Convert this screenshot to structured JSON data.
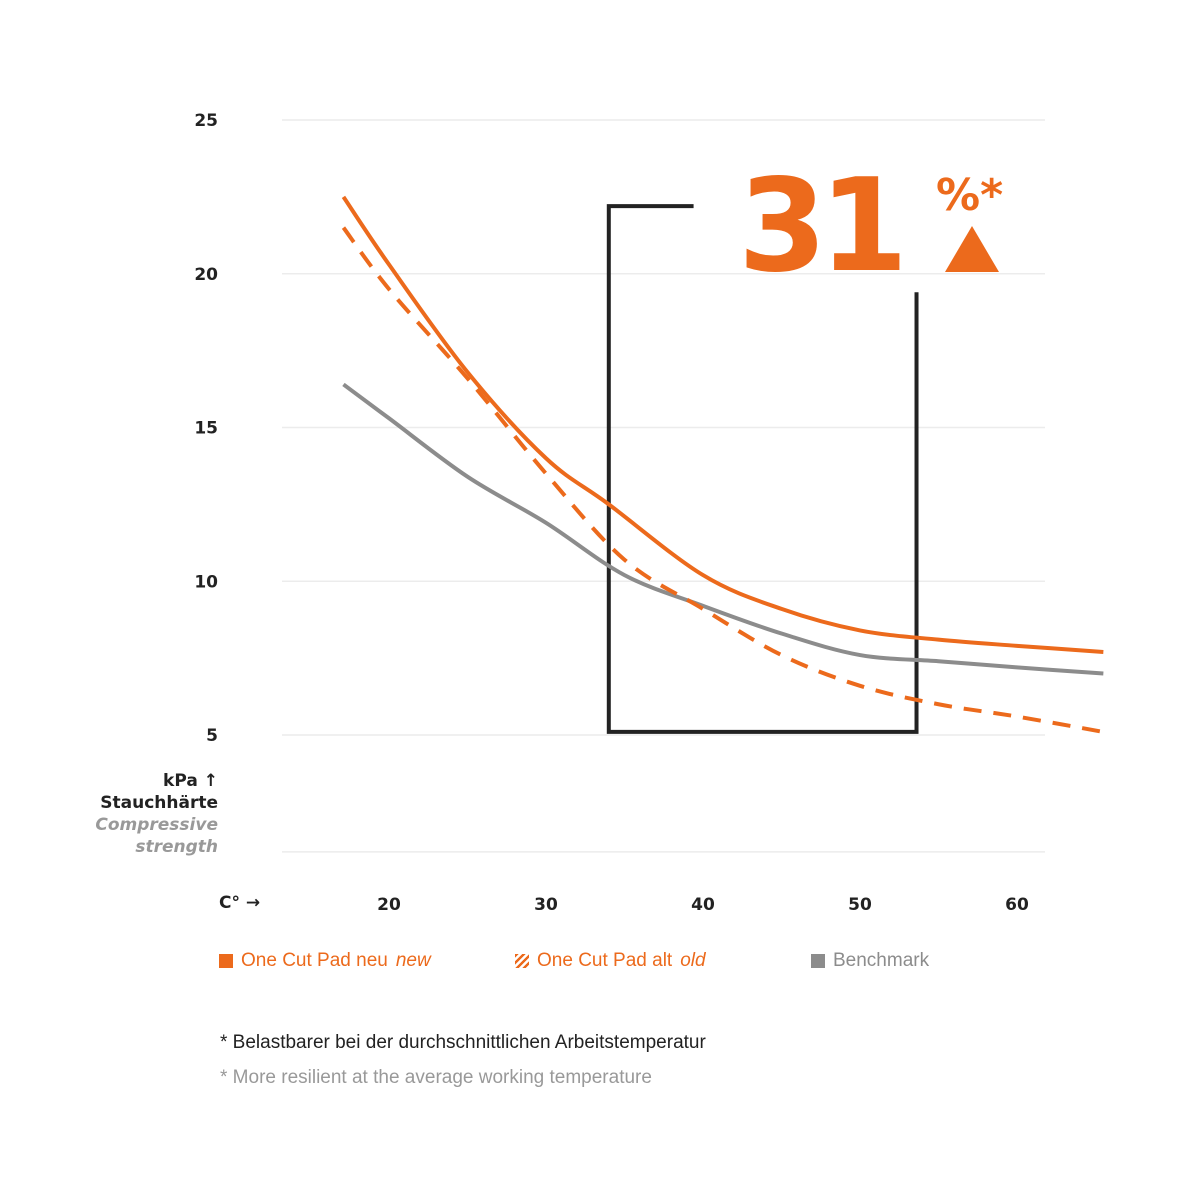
{
  "chart_data": {
    "type": "line",
    "xlabel": "C° →",
    "ylabel": {
      "unit": "kPa ↑",
      "de": "Stauchhärte",
      "en": "Compressive strength"
    },
    "x_ticks": [
      20,
      30,
      40,
      50,
      60
    ],
    "y_ticks": [
      5,
      10,
      15,
      20,
      25
    ],
    "xlim": [
      13,
      66
    ],
    "ylim": [
      1.2,
      25
    ],
    "grid": "horizontal",
    "legend_placement": "bottom",
    "series": [
      {
        "name": "One Cut Pad neu",
        "name_en": "new",
        "style": "solid",
        "color": "#ec6a1c",
        "x": [
          17.1,
          20,
          25,
          30,
          34,
          40,
          45,
          50,
          55,
          60,
          65.5
        ],
        "y": [
          22.5,
          20.3,
          16.8,
          14.0,
          12.5,
          10.2,
          9.1,
          8.4,
          8.1,
          7.9,
          7.7
        ]
      },
      {
        "name": "One Cut Pad alt",
        "name_en": "old",
        "style": "dashed",
        "color": "#ec6a1c",
        "x": [
          17.1,
          20,
          25,
          30,
          35,
          40,
          45,
          50,
          55,
          60,
          65.5
        ],
        "y": [
          21.5,
          19.5,
          16.6,
          13.5,
          10.7,
          9.1,
          7.6,
          6.6,
          6.0,
          5.6,
          5.1
        ]
      },
      {
        "name": "Benchmark",
        "style": "solid",
        "color": "#8c8c8c",
        "x": [
          17.1,
          20,
          25,
          30,
          35,
          40,
          45,
          50,
          55,
          60,
          65.5
        ],
        "y": [
          16.4,
          15.3,
          13.4,
          11.9,
          10.2,
          9.2,
          8.3,
          7.6,
          7.4,
          7.2,
          7.0
        ]
      }
    ],
    "annotation": {
      "value": "31",
      "unit": "%*",
      "icon": "triangle-up-icon",
      "bracket": {
        "x_start": 34,
        "x_end": 53.6,
        "y_bottom": 5.1,
        "y_left_top": 22.2,
        "y_right_top": 19.4,
        "top_line_end_x": 39.4
      }
    },
    "footnotes": [
      "* Belastbarer bei der durchschnittlichen Arbeitstemperatur",
      "* More resilient at the average working temperature"
    ]
  },
  "colors": {
    "accent": "#ec6a1c",
    "benchmark": "#8c8c8c",
    "grid": "#ececec",
    "bracket": "#222222"
  }
}
